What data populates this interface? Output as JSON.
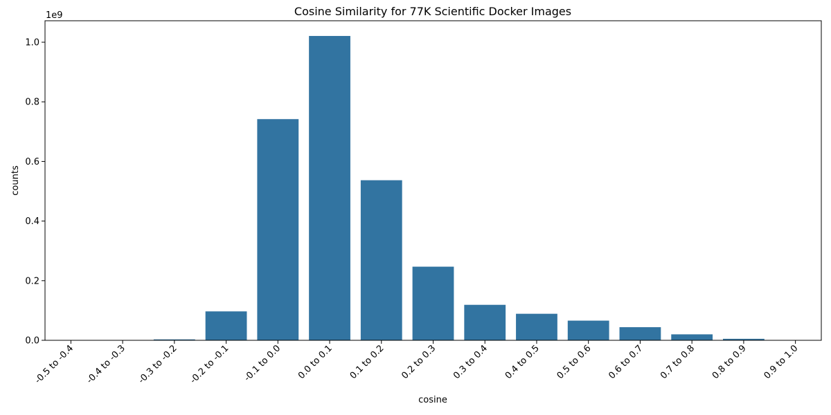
{
  "chart_data": {
    "type": "bar",
    "title": "Cosine Similarity for 77K Scientific Docker Images",
    "xlabel": "cosine",
    "ylabel": "counts",
    "scale_label": "1e9",
    "categories": [
      "-0.5 to -0.4",
      "-0.4 to -0.3",
      "-0.3 to -0.2",
      "-0.2 to -0.1",
      "-0.1 to 0.0",
      "0.0 to 0.1",
      "0.1 to 0.2",
      "0.2 to 0.3",
      "0.3 to 0.4",
      "0.4 to 0.5",
      "0.5 to 0.6",
      "0.6 to 0.7",
      "0.7 to 0.8",
      "0.8 to 0.9",
      "0.9 to 1.0"
    ],
    "values": [
      0.0001,
      0.0003,
      0.003,
      0.097,
      0.742,
      1.021,
      0.537,
      0.247,
      0.119,
      0.089,
      0.066,
      0.044,
      0.02,
      0.005,
      0.0003
    ],
    "yticks": [
      "0.0",
      "0.2",
      "0.4",
      "0.6",
      "0.8",
      "1.0"
    ],
    "ytick_values": [
      0.0,
      0.2,
      0.4,
      0.6,
      0.8,
      1.0
    ],
    "ylim": [
      0,
      1.072
    ],
    "bar_color": "#3274a1",
    "grid": false,
    "legend": "none"
  }
}
